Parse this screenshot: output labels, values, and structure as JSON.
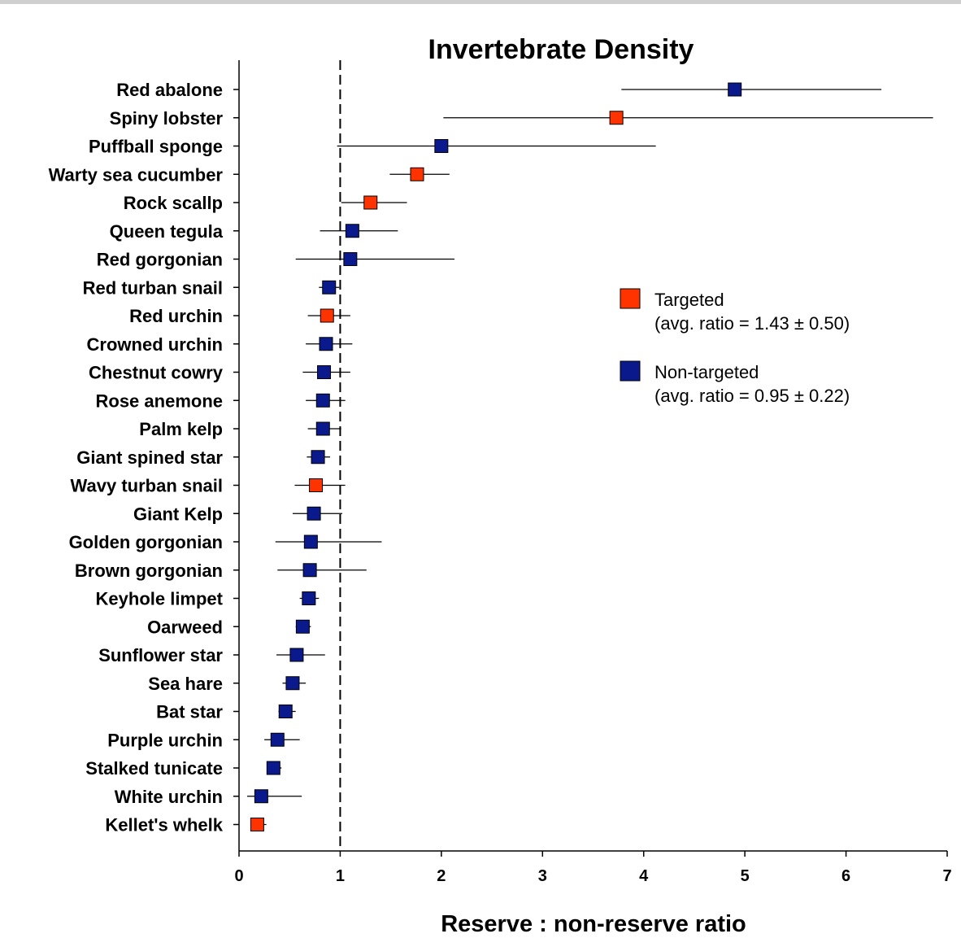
{
  "chart_data": {
    "type": "scatter",
    "title": "Invertebrate Density",
    "xlabel": "Reserve : non-reserve ratio",
    "ylabel": "",
    "xlim": [
      0,
      7
    ],
    "x_ticks": [
      "0",
      "1",
      "2",
      "3",
      "4",
      "5",
      "6",
      "7"
    ],
    "reference_line": {
      "x": 1,
      "style": "dashed"
    },
    "grid": false,
    "legend_placement": "right",
    "colors": {
      "Targeted": "#ff3300",
      "Non-targeted": "#0a1a8c"
    },
    "legend": [
      {
        "series": "Targeted",
        "label": "Targeted",
        "note": "(avg. ratio = 1.43 ± 0.50)"
      },
      {
        "series": "Non-targeted",
        "label": "Non-targeted",
        "note": "(avg. ratio = 0.95 ± 0.22)"
      }
    ],
    "points": [
      {
        "label": "Red abalone",
        "value": 4.9,
        "low": 3.78,
        "high": 6.35,
        "series": "Non-targeted"
      },
      {
        "label": "Spiny lobster",
        "value": 3.73,
        "low": 2.02,
        "high": 6.86,
        "series": "Targeted"
      },
      {
        "label": "Puffball sponge",
        "value": 2.0,
        "low": 0.97,
        "high": 4.12,
        "series": "Non-targeted"
      },
      {
        "label": "Warty sea cucumber",
        "value": 1.76,
        "low": 1.49,
        "high": 2.08,
        "series": "Targeted"
      },
      {
        "label": "Rock scallp",
        "value": 1.3,
        "low": 1.01,
        "high": 1.66,
        "series": "Targeted"
      },
      {
        "label": "Queen tegula",
        "value": 1.12,
        "low": 0.8,
        "high": 1.57,
        "series": "Non-targeted"
      },
      {
        "label": "Red gorgonian",
        "value": 1.1,
        "low": 0.56,
        "high": 2.13,
        "series": "Non-targeted"
      },
      {
        "label": "Red turban snail",
        "value": 0.89,
        "low": 0.79,
        "high": 0.99,
        "series": "Non-targeted"
      },
      {
        "label": "Red urchin",
        "value": 0.87,
        "low": 0.68,
        "high": 1.1,
        "series": "Targeted"
      },
      {
        "label": "Crowned urchin",
        "value": 0.86,
        "low": 0.66,
        "high": 1.12,
        "series": "Non-targeted"
      },
      {
        "label": "Chestnut cowry",
        "value": 0.84,
        "low": 0.63,
        "high": 1.1,
        "series": "Non-targeted"
      },
      {
        "label": "Rose anemone",
        "value": 0.83,
        "low": 0.66,
        "high": 1.05,
        "series": "Non-targeted"
      },
      {
        "label": "Palm kelp",
        "value": 0.83,
        "low": 0.68,
        "high": 1.01,
        "series": "Non-targeted"
      },
      {
        "label": "Giant spined star",
        "value": 0.78,
        "low": 0.67,
        "high": 0.9,
        "series": "Non-targeted"
      },
      {
        "label": "Wavy turban snail",
        "value": 0.76,
        "low": 0.55,
        "high": 1.05,
        "series": "Targeted"
      },
      {
        "label": "Giant Kelp",
        "value": 0.74,
        "low": 0.53,
        "high": 1.02,
        "series": "Non-targeted"
      },
      {
        "label": "Golden gorgonian",
        "value": 0.71,
        "low": 0.36,
        "high": 1.41,
        "series": "Non-targeted"
      },
      {
        "label": "Brown gorgonian",
        "value": 0.7,
        "low": 0.38,
        "high": 1.26,
        "series": "Non-targeted"
      },
      {
        "label": "Keyhole limpet",
        "value": 0.69,
        "low": 0.6,
        "high": 0.79,
        "series": "Non-targeted"
      },
      {
        "label": "Oarweed",
        "value": 0.63,
        "low": 0.56,
        "high": 0.71,
        "series": "Non-targeted"
      },
      {
        "label": "Sunflower star",
        "value": 0.57,
        "low": 0.37,
        "high": 0.85,
        "series": "Non-targeted"
      },
      {
        "label": "Sea hare",
        "value": 0.53,
        "low": 0.43,
        "high": 0.66,
        "series": "Non-targeted"
      },
      {
        "label": "Bat star",
        "value": 0.46,
        "low": 0.39,
        "high": 0.56,
        "series": "Non-targeted"
      },
      {
        "label": "Purple urchin",
        "value": 0.38,
        "low": 0.25,
        "high": 0.6,
        "series": "Non-targeted"
      },
      {
        "label": "Stalked tunicate",
        "value": 0.34,
        "low": 0.28,
        "high": 0.42,
        "series": "Non-targeted"
      },
      {
        "label": "White urchin",
        "value": 0.22,
        "low": 0.08,
        "high": 0.62,
        "series": "Non-targeted"
      },
      {
        "label": "Kellet's whelk",
        "value": 0.18,
        "low": 0.12,
        "high": 0.27,
        "series": "Targeted"
      }
    ]
  }
}
